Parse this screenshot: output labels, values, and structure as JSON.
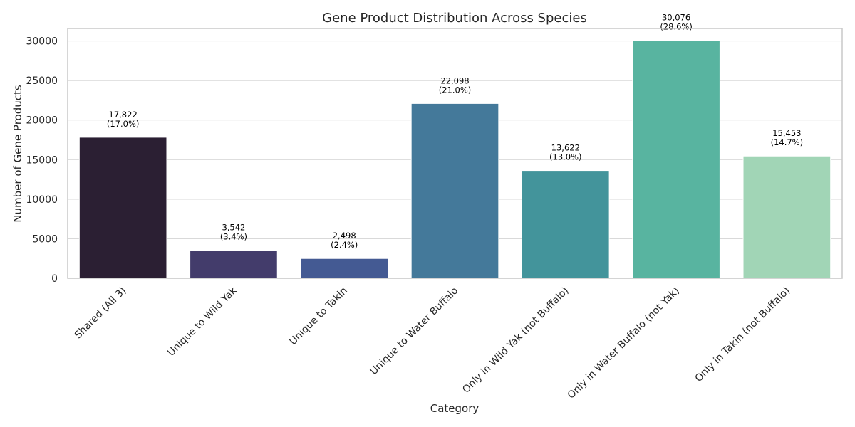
{
  "chart_data": {
    "type": "bar",
    "title": "Gene Product Distribution Across Species",
    "xlabel": "Category",
    "ylabel": "Number of Gene Products",
    "categories": [
      "Shared (All 3)",
      "Unique to Wild Yak",
      "Unique to Takin",
      "Unique to Water Buffalo",
      "Only in Wild Yak (not Buffalo)",
      "Only in Water Buffalo (not Yak)",
      "Only in Takin (not Buffalo)"
    ],
    "values": [
      17822,
      3542,
      2498,
      22098,
      13622,
      30076,
      15453
    ],
    "value_labels": [
      "17,822",
      "3,542",
      "2,498",
      "22,098",
      "13,622",
      "30,076",
      "15,453"
    ],
    "percent_labels": [
      "(17.0%)",
      "(3.4%)",
      "(2.4%)",
      "(21.0%)",
      "(13.0%)",
      "(28.6%)",
      "(14.7%)"
    ],
    "colors": [
      "#2b1f33",
      "#433c6b",
      "#445a93",
      "#44799a",
      "#43949b",
      "#58b4a0",
      "#a1d5b6"
    ],
    "yticks": [
      0,
      5000,
      10000,
      15000,
      20000,
      25000,
      30000
    ],
    "ylim": [
      0,
      31580
    ],
    "grid": true,
    "legend": "none"
  }
}
